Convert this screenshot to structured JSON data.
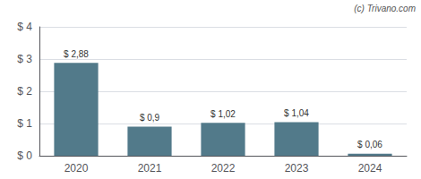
{
  "chart_data": {
    "type": "bar",
    "annotation": "(c) Trivano.com",
    "categories": [
      "2020",
      "2021",
      "2022",
      "2023",
      "2024"
    ],
    "values": [
      2.88,
      0.9,
      1.02,
      1.04,
      0.06
    ],
    "value_labels": [
      "$ 2,88",
      "$ 0,9",
      "$ 1,02",
      "$ 1,04",
      "$ 0,06"
    ],
    "data_labels": true,
    "color": "#527a8a",
    "ylim": [
      0,
      4
    ],
    "yticks": [
      {
        "value": 0,
        "label": "$ 0"
      },
      {
        "value": 1,
        "label": "$ 1"
      },
      {
        "value": 2,
        "label": "$ 2"
      },
      {
        "value": 3,
        "label": "$ 3"
      },
      {
        "value": 4,
        "label": "$ 4"
      }
    ],
    "grid": true
  }
}
